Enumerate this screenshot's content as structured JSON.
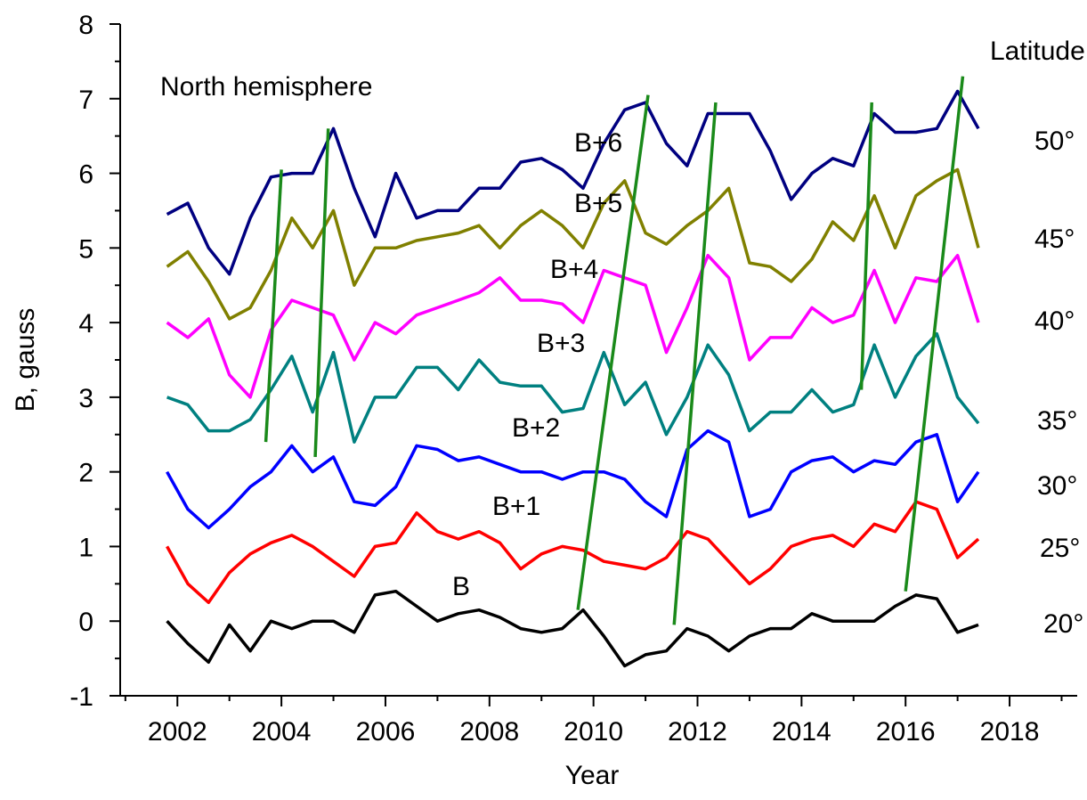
{
  "chart_data": {
    "type": "line",
    "xlabel": "Year",
    "ylabel": "B, gauss",
    "annotations": [
      "North hemisphere",
      "Latitude"
    ],
    "xlim": [
      2000.9,
      2019.3
    ],
    "ylim": [
      -1,
      8
    ],
    "xticks": [
      2002,
      2004,
      2006,
      2008,
      2010,
      2012,
      2014,
      2016,
      2018
    ],
    "yticks": [
      -1,
      0,
      1,
      2,
      3,
      4,
      5,
      6,
      7,
      8
    ],
    "grid": false,
    "x": [
      2001.8,
      2002.2,
      2002.6,
      2003.0,
      2003.4,
      2003.8,
      2004.2,
      2004.6,
      2005.0,
      2005.4,
      2005.8,
      2006.2,
      2006.6,
      2007.0,
      2007.4,
      2007.8,
      2008.2,
      2008.6,
      2009.0,
      2009.4,
      2009.8,
      2010.2,
      2010.6,
      2011.0,
      2011.4,
      2011.8,
      2012.2,
      2012.6,
      2013.0,
      2013.4,
      2013.8,
      2014.2,
      2014.6,
      2015.0,
      2015.4,
      2015.8,
      2016.2,
      2016.6,
      2017.0,
      2017.4
    ],
    "series": [
      {
        "name": "B",
        "latitude": "20°",
        "color": "#000000",
        "values": [
          0,
          -0.3,
          -0.55,
          -0.05,
          -0.4,
          0,
          -0.1,
          0,
          0,
          -0.15,
          0.35,
          0.4,
          0.2,
          0.0,
          0.1,
          0.15,
          0.05,
          -0.1,
          -0.15,
          -0.1,
          0.15,
          -0.2,
          -0.6,
          -0.45,
          -0.4,
          -0.1,
          -0.2,
          -0.4,
          -0.2,
          -0.1,
          -0.1,
          0.1,
          0.0,
          0.0,
          0.0,
          0.2,
          0.35,
          0.3,
          -0.15,
          -0.05
        ]
      },
      {
        "name": "B+1",
        "latitude": "25°",
        "color": "#ff0000",
        "values": [
          1.0,
          0.5,
          0.25,
          0.65,
          0.9,
          1.05,
          1.15,
          1.0,
          0.8,
          0.6,
          1.0,
          1.05,
          1.45,
          1.2,
          1.1,
          1.2,
          1.05,
          0.7,
          0.9,
          1.0,
          0.95,
          0.8,
          0.75,
          0.7,
          0.85,
          1.2,
          1.1,
          0.8,
          0.5,
          0.7,
          1.0,
          1.1,
          1.15,
          1.0,
          1.3,
          1.2,
          1.6,
          1.5,
          0.85,
          1.1
        ]
      },
      {
        "name": "B+2",
        "latitude": "30°",
        "color": "#0000ff",
        "values": [
          2.0,
          1.5,
          1.25,
          1.5,
          1.8,
          2.0,
          2.35,
          2.0,
          2.2,
          1.6,
          1.55,
          1.8,
          2.35,
          2.3,
          2.15,
          2.2,
          2.1,
          2.0,
          2.0,
          1.9,
          2.0,
          2.0,
          1.9,
          1.6,
          1.4,
          2.3,
          2.55,
          2.4,
          1.4,
          1.5,
          2.0,
          2.15,
          2.2,
          2.0,
          2.15,
          2.1,
          2.4,
          2.5,
          1.6,
          2.0
        ]
      },
      {
        "name": "B+3",
        "latitude": "35°",
        "color": "#008080",
        "values": [
          3.0,
          2.9,
          2.55,
          2.55,
          2.7,
          3.1,
          3.55,
          2.8,
          3.6,
          2.4,
          3.0,
          3.0,
          3.4,
          3.4,
          3.1,
          3.5,
          3.2,
          3.15,
          3.15,
          2.8,
          2.85,
          3.6,
          2.9,
          3.2,
          2.5,
          3.0,
          3.7,
          3.3,
          2.55,
          2.8,
          2.8,
          3.1,
          2.8,
          2.9,
          3.7,
          3.0,
          3.55,
          3.85,
          3.0,
          2.65
        ]
      },
      {
        "name": "B+4",
        "latitude": "40°",
        "color": "#ff00ff",
        "values": [
          4.0,
          3.8,
          4.05,
          3.3,
          3.0,
          3.9,
          4.3,
          4.2,
          4.1,
          3.5,
          4.0,
          3.85,
          4.1,
          4.2,
          4.3,
          4.4,
          4.6,
          4.3,
          4.3,
          4.25,
          4.0,
          4.7,
          4.6,
          4.5,
          3.6,
          4.2,
          4.9,
          4.6,
          3.5,
          3.8,
          3.8,
          4.2,
          4.0,
          4.1,
          4.7,
          4.0,
          4.6,
          4.55,
          4.9,
          4.0
        ]
      },
      {
        "name": "B+5",
        "latitude": "45°",
        "color": "#808000",
        "values": [
          4.75,
          4.95,
          4.55,
          4.05,
          4.2,
          4.7,
          5.4,
          5.0,
          5.5,
          4.5,
          5.0,
          5.0,
          5.1,
          5.15,
          5.2,
          5.3,
          5.0,
          5.3,
          5.5,
          5.3,
          5.0,
          5.6,
          5.9,
          5.2,
          5.05,
          5.3,
          5.5,
          5.8,
          4.8,
          4.75,
          4.55,
          4.85,
          5.35,
          5.1,
          5.7,
          5.0,
          5.7,
          5.9,
          6.05,
          5.0
        ]
      },
      {
        "name": "B+6",
        "latitude": "50°",
        "color": "#000080",
        "values": [
          5.45,
          5.6,
          5.0,
          4.65,
          5.4,
          5.95,
          6.0,
          6.0,
          6.6,
          5.8,
          5.15,
          6.0,
          5.4,
          5.5,
          5.5,
          5.8,
          5.8,
          6.15,
          6.2,
          6.05,
          5.8,
          6.4,
          6.85,
          6.95,
          6.4,
          6.1,
          6.8,
          6.8,
          6.8,
          6.3,
          5.65,
          6.0,
          6.2,
          6.1,
          6.8,
          6.55,
          6.55,
          6.6,
          7.1,
          6.6
        ]
      }
    ],
    "trend_color": "#1a8a1a",
    "trend_lines": [
      {
        "x": [
          2003.7,
          2004.0
        ],
        "y": [
          2.4,
          6.05
        ]
      },
      {
        "x": [
          2004.65,
          2004.9
        ],
        "y": [
          2.2,
          6.6
        ]
      },
      {
        "x": [
          2009.7,
          2011.05
        ],
        "y": [
          0.15,
          7.05
        ]
      },
      {
        "x": [
          2011.55,
          2012.35
        ],
        "y": [
          -0.05,
          6.95
        ]
      },
      {
        "x": [
          2015.15,
          2015.35
        ],
        "y": [
          3.1,
          6.95
        ]
      },
      {
        "x": [
          2016.0,
          2017.1
        ],
        "y": [
          0.4,
          7.3
        ]
      }
    ]
  }
}
